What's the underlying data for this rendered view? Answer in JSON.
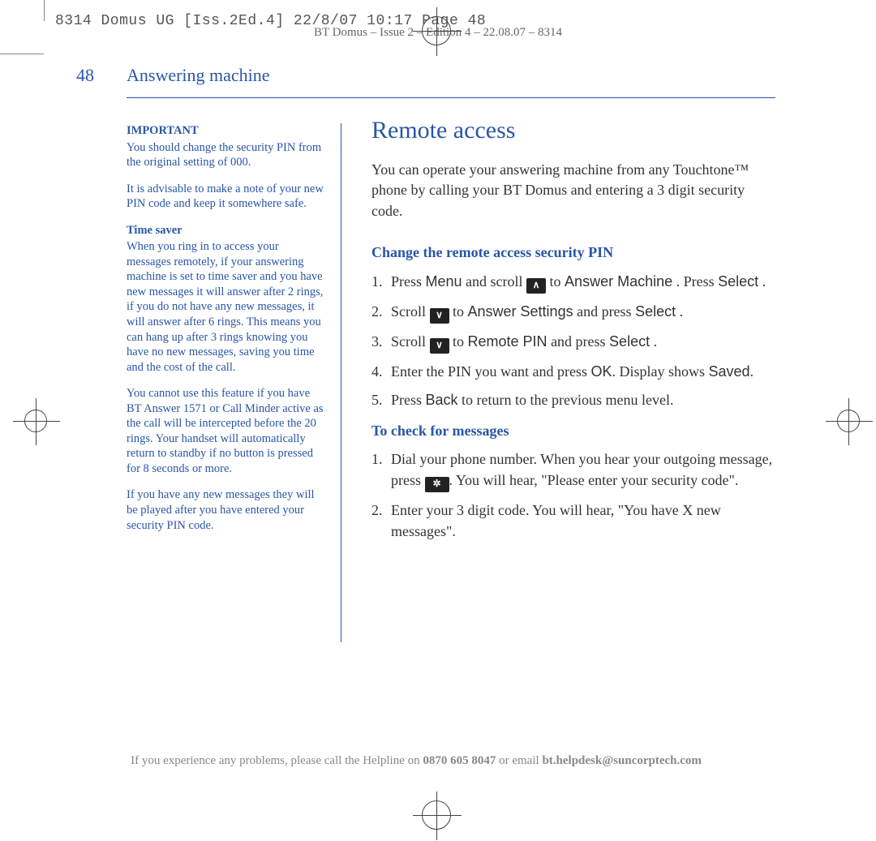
{
  "print": {
    "slug": "8314 Domus UG [Iss.2Ed.4]  22/8/07  10:17  Page 48",
    "header_meta": "BT Domus – Issue 2 – Edition 4 – 22.08.07 – 8314"
  },
  "colors": {
    "brand_blue": "#2956a6",
    "body_text": "#333333",
    "muted": "#888888",
    "key_bg": "#222222",
    "key_fg": "#ffffff",
    "background": "#ffffff"
  },
  "typography": {
    "body_family": "Georgia, 'Times New Roman', serif",
    "ui_family": "Arial, Helvetica, sans-serif",
    "title_pt": 30,
    "h2_pt": 18,
    "body_pt": 18,
    "sidebar_pt": 14.5
  },
  "page": {
    "number": "48",
    "section": "Answering machine"
  },
  "sidebar": {
    "important_label": "IMPORTANT",
    "important_p1": "You should change the security PIN from the original setting of 000.",
    "important_p2": "It is advisable to make a note of your new PIN code and keep it somewhere safe.",
    "timesaver_label": "Time saver",
    "timesaver_p1": "When you ring in to access your messages remotely, if your answering machine is set to time saver and you have new messages it will answer after 2 rings, if you do not have any new messages, it will answer after 6 rings. This means you can hang up after 3 rings knowing you have no new messages, saving you time and the cost of the call.",
    "timesaver_p2": "You cannot use this feature if you have BT Answer 1571 or Call Minder active as the call will be intercepted before the 20 rings. Your handset will automatically return to standby if no button is pressed for 8 seconds or more.",
    "timesaver_p3": "If you have any new messages they will be played after you have entered your security PIN code."
  },
  "main": {
    "title": "Remote access",
    "intro": "You can operate your answering machine from any Touchtone™ phone by calling your BT Domus and entering a 3 digit security code.",
    "h2_changepin": "Change the remote access security PIN",
    "steps_changepin": {
      "s1_a": "Press ",
      "s1_b": "Menu",
      "s1_c": " and scroll ",
      "s1_key": "∧",
      "s1_d": " to ",
      "s1_e": "Answer Machine",
      "s1_f": " . Press ",
      "s1_g": "Select",
      "s1_h": " .",
      "s2_a": "Scroll ",
      "s2_key": "∨",
      "s2_b": " to ",
      "s2_c": "Answer Settings",
      "s2_d": "    and press ",
      "s2_e": "Select",
      "s2_f": " .",
      "s3_a": "Scroll ",
      "s3_key": "∨",
      "s3_b": " to ",
      "s3_c": "Remote PIN",
      "s3_d": " and press ",
      "s3_e": "Select",
      "s3_f": " .",
      "s4_a": "Enter the PIN you want and press ",
      "s4_b": "OK",
      "s4_c": ". Display shows ",
      "s4_d": "Saved",
      "s4_e": ".",
      "s5_a": "Press ",
      "s5_b": "Back",
      "s5_c": " to return to the previous menu level."
    },
    "h2_check": "To check for messages",
    "steps_check": {
      "c1_a": "Dial your phone number. When you hear your outgoing message, press ",
      "c1_key": "✲",
      "c1_b": ". You will hear, \"Please enter your security code\".",
      "c2": "Enter your 3 digit code. You will hear, \"You have X new messages\"."
    }
  },
  "footer": {
    "pre": "If you experience any problems, please call the Helpline on ",
    "phone": "0870 605 8047",
    "mid": " or email ",
    "email": "bt.helpdesk@suncorptech.com"
  }
}
